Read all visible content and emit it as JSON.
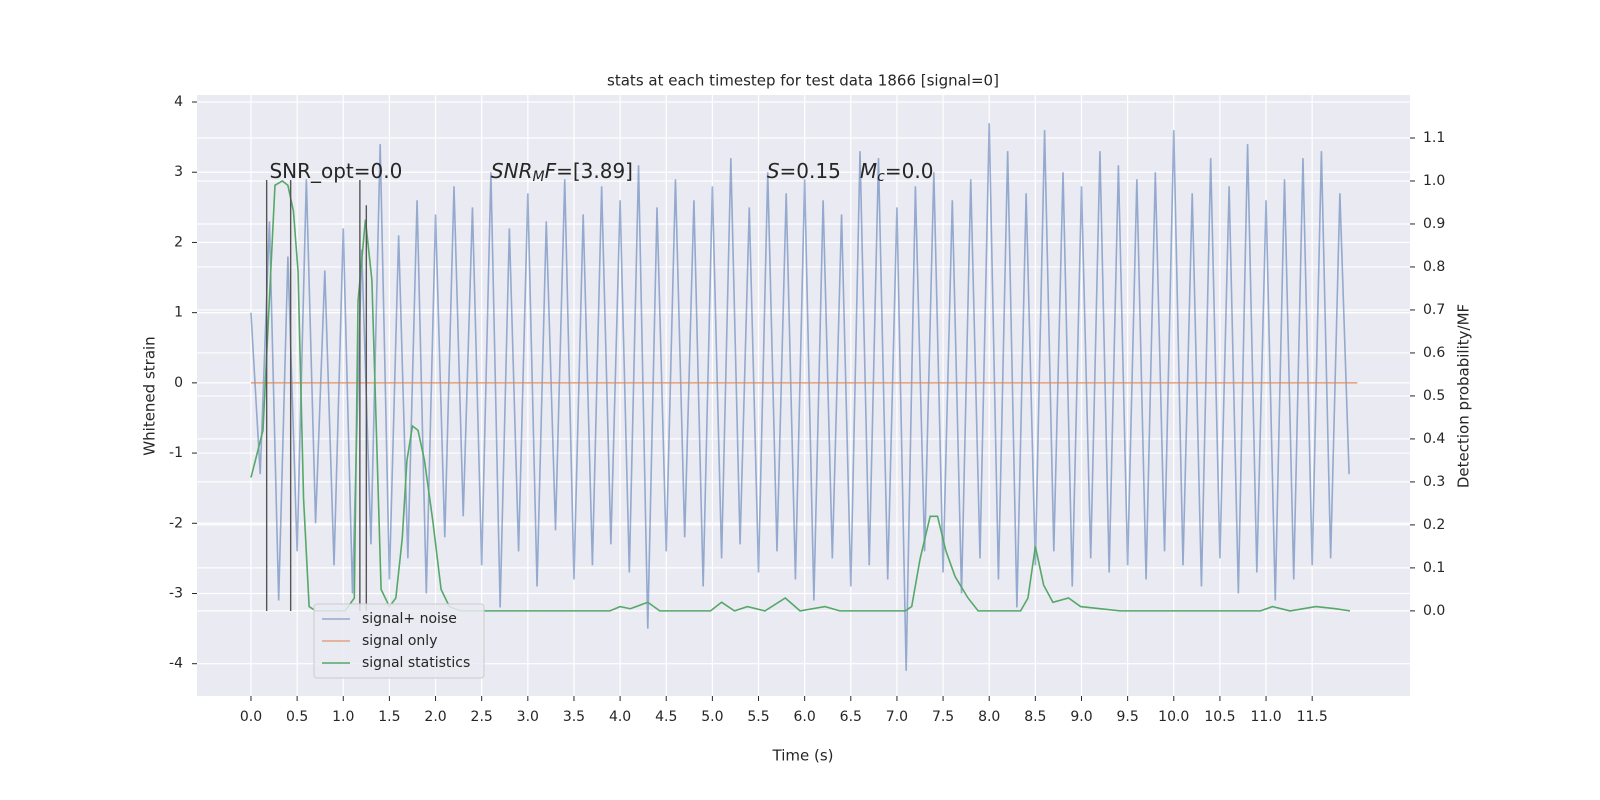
{
  "chart_data": {
    "type": "line",
    "title": "stats at each timestep for test data 1866 [signal=0]",
    "xlabel": "Time (s)",
    "ylabel": "Whitened strain",
    "y2label": "Detection probability/MF",
    "xlim": [
      -0.585,
      12.56
    ],
    "ylim": [
      -4.46,
      4.1
    ],
    "y2lim": [
      -0.198,
      1.2
    ],
    "xticks": [
      {
        "value": 0,
        "label": "0.0"
      },
      0.5,
      {
        "value": 1,
        "label": "1.0"
      },
      1.5,
      {
        "value": 2,
        "label": "2.0"
      },
      2.5,
      {
        "value": 3,
        "label": "3.0"
      },
      3.5,
      {
        "value": 4,
        "label": "4.0"
      },
      4.5,
      {
        "value": 5,
        "label": "5.0"
      },
      5.5,
      {
        "value": 6,
        "label": "6.0"
      },
      6.5,
      {
        "value": 7,
        "label": "7.0"
      },
      7.5,
      {
        "value": 8,
        "label": "8.0"
      },
      8.5,
      {
        "value": 9,
        "label": "9.0"
      },
      9.5,
      {
        "value": 10,
        "label": "10.0"
      },
      10.5,
      {
        "value": 11,
        "label": "11.0"
      },
      11.5
    ],
    "yticks": [
      -4,
      -3,
      -2,
      -1,
      0,
      1,
      2,
      3,
      4
    ],
    "y2ticks": [
      {
        "value": 0,
        "label": "0.0"
      },
      0.1,
      0.2,
      0.3,
      0.4,
      0.5,
      0.6,
      0.7,
      0.8,
      0.9,
      {
        "value": 1,
        "label": "1.0"
      },
      1.1
    ],
    "grid": true,
    "legend": "lower left",
    "series": [
      {
        "name": "signal+ noise",
        "color": "#4c72b0",
        "alpha": 0.55,
        "x": [
          0,
          0.1,
          0.2,
          0.3,
          0.4,
          0.5,
          0.6,
          0.7,
          0.8,
          0.9,
          1,
          1.1,
          1.2,
          1.3,
          1.4,
          1.5,
          1.6,
          1.7,
          1.8,
          1.9,
          2,
          2.1,
          2.2,
          2.3,
          2.4,
          2.5,
          2.6,
          2.7,
          2.8,
          2.9,
          3,
          3.1,
          3.2,
          3.3,
          3.4,
          3.5,
          3.6,
          3.7,
          3.8,
          3.9,
          4,
          4.1,
          4.2,
          4.3,
          4.4,
          4.5,
          4.6,
          4.7,
          4.8,
          4.9,
          5,
          5.1,
          5.2,
          5.3,
          5.4,
          5.5,
          5.6,
          5.7,
          5.8,
          5.9,
          6,
          6.1,
          6.2,
          6.3,
          6.4,
          6.5,
          6.6,
          6.7,
          6.8,
          6.9,
          7,
          7.1,
          7.2,
          7.3,
          7.4,
          7.5,
          7.6,
          7.7,
          7.8,
          7.9,
          8,
          8.1,
          8.2,
          8.3,
          8.4,
          8.5,
          8.6,
          8.7,
          8.8,
          8.9,
          9,
          9.1,
          9.2,
          9.3,
          9.4,
          9.5,
          9.6,
          9.7,
          9.8,
          9.9,
          10,
          10.1,
          10.2,
          10.3,
          10.4,
          10.5,
          10.6,
          10.7,
          10.8,
          10.9,
          11,
          11.1,
          11.2,
          11.3,
          11.4,
          11.5,
          11.6,
          11.7,
          11.8,
          11.9
        ],
        "values": [
          1.0,
          -1.3,
          2.3,
          -3.1,
          1.8,
          -2.4,
          2.9,
          -2.0,
          1.6,
          -2.6,
          2.2,
          -3.0,
          1.9,
          -2.3,
          3.4,
          -2.8,
          2.1,
          -2.5,
          2.6,
          -3.0,
          2.4,
          -2.2,
          2.8,
          -1.9,
          2.5,
          -2.6,
          3.0,
          -3.2,
          2.2,
          -2.4,
          2.7,
          -2.9,
          2.3,
          -2.1,
          2.9,
          -2.8,
          2.4,
          -2.6,
          2.8,
          -2.3,
          2.6,
          -2.7,
          3.1,
          -3.5,
          2.5,
          -2.4,
          2.9,
          -2.2,
          2.6,
          -2.9,
          2.8,
          -2.5,
          3.2,
          -2.3,
          2.5,
          -2.7,
          3.0,
          -2.4,
          2.7,
          -2.8,
          2.9,
          -3.1,
          2.6,
          -2.5,
          2.4,
          -2.9,
          3.3,
          -2.6,
          3.2,
          -2.8,
          2.5,
          -4.1,
          2.8,
          -2.4,
          3.0,
          -2.7,
          2.6,
          -3.0,
          2.9,
          -2.5,
          3.7,
          -2.8,
          3.3,
          -3.2,
          2.7,
          -2.6,
          3.6,
          -2.4,
          3.0,
          -2.9,
          2.8,
          -2.5,
          3.3,
          -2.7,
          3.1,
          -2.6,
          2.9,
          -2.8,
          3.0,
          -2.4,
          3.6,
          -2.6,
          2.7,
          -2.9,
          3.2,
          -2.5,
          2.8,
          -3.0,
          3.4,
          -2.7,
          2.6,
          -3.1,
          2.9,
          -2.8,
          3.2,
          -2.6,
          3.3,
          -2.5,
          2.7,
          -1.3
        ]
      },
      {
        "name": "signal only",
        "color": "#dd8452",
        "alpha": 0.7,
        "x": [
          0,
          11.99
        ],
        "values": [
          0,
          0
        ]
      },
      {
        "name": "signal statistics",
        "color": "#55a868",
        "alpha": 1,
        "axis": "y2",
        "x": [
          0,
          0.13,
          0.26,
          0.34,
          0.4,
          0.46,
          0.51,
          0.57,
          0.63,
          0.7,
          1.02,
          1.12,
          1.16,
          1.24,
          1.31,
          1.41,
          1.5,
          1.57,
          1.64,
          1.69,
          1.75,
          1.81,
          1.88,
          1.97,
          2.06,
          2.15,
          2.27,
          3.89,
          4.0,
          4.11,
          4.3,
          4.43,
          4.98,
          5.1,
          5.24,
          5.38,
          5.57,
          5.79,
          5.95,
          6.22,
          6.38,
          7.09,
          7.16,
          7.25,
          7.36,
          7.44,
          7.53,
          7.63,
          7.77,
          7.88,
          8.34,
          8.42,
          8.5,
          8.59,
          8.69,
          8.86,
          8.99,
          9.2,
          9.42,
          10.94,
          11.07,
          11.26,
          11.54,
          11.75,
          11.91
        ],
        "values": [
          0.31,
          0.42,
          0.99,
          1.0,
          0.99,
          0.93,
          0.79,
          0.26,
          0.01,
          0.0,
          0.0,
          0.03,
          0.72,
          0.91,
          0.77,
          0.05,
          0.01,
          0.03,
          0.17,
          0.35,
          0.43,
          0.42,
          0.35,
          0.21,
          0.05,
          0.01,
          0.0,
          0.0,
          0.01,
          0.005,
          0.02,
          0.0,
          0.0,
          0.02,
          0.0,
          0.01,
          0.0,
          0.03,
          0.0,
          0.01,
          0.0,
          0.0,
          0.01,
          0.12,
          0.22,
          0.22,
          0.14,
          0.08,
          0.03,
          0.0,
          0.0,
          0.03,
          0.15,
          0.06,
          0.02,
          0.03,
          0.01,
          0.005,
          0.0,
          0.0,
          0.01,
          0.0,
          0.01,
          0.005,
          0.0
        ]
      }
    ],
    "vlines": {
      "color": "#555555",
      "x": [
        0.17,
        0.43,
        1.18,
        1.25
      ],
      "ymin": [
        -3.25,
        -3.25,
        -3.25,
        -3.25
      ],
      "ymax": [
        2.89,
        2.89,
        2.89,
        2.53
      ]
    },
    "annotations": [
      {
        "x": 0.2,
        "y": 3.0,
        "parts": [
          {
            "text": "SNR_opt=0.0",
            "style": "normal"
          }
        ]
      },
      {
        "x": 2.6,
        "y": 3.0,
        "parts": [
          {
            "text": "SNR",
            "style": "italic"
          },
          {
            "text": "M",
            "style": "sub"
          },
          {
            "text": "F",
            "style": "italic"
          },
          {
            "text": "=[3.89]",
            "style": "normal"
          }
        ]
      },
      {
        "x": 5.59,
        "y": 3.0,
        "parts": [
          {
            "text": "S",
            "style": "italic"
          },
          {
            "text": "=0.15   ",
            "style": "normal"
          },
          {
            "text": "M",
            "style": "italic"
          },
          {
            "text": "c",
            "style": "sub"
          },
          {
            "text": "=0.0",
            "style": "normal"
          }
        ]
      }
    ]
  }
}
